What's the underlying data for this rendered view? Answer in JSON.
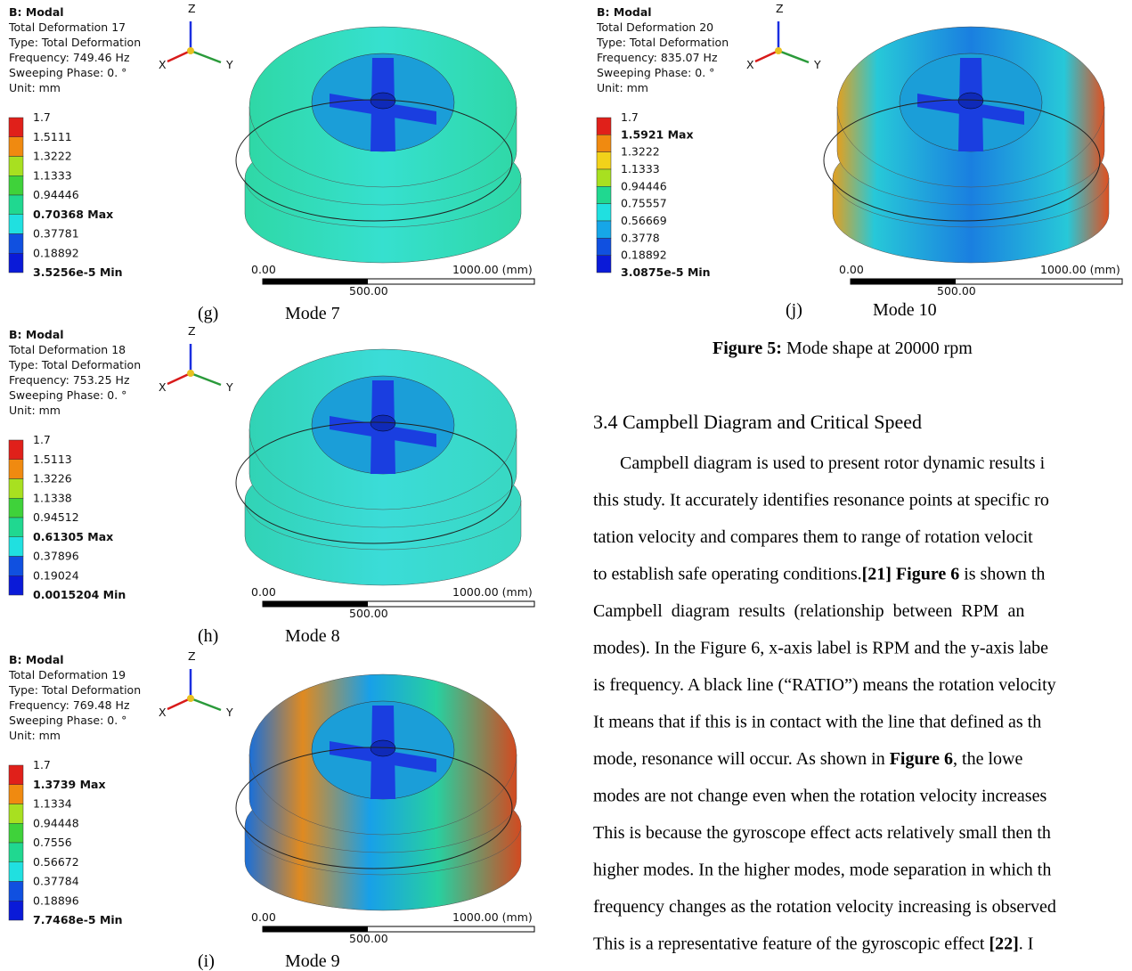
{
  "panels": [
    {
      "header": [
        "B: Modal",
        "Total Deformation 17",
        "Type: Total Deformation",
        "Frequency: 749.46 Hz",
        "Sweeping Phase: 0. °",
        "Unit: mm"
      ],
      "legend": [
        "1.7",
        "1.5111",
        "1.3222",
        "1.1333",
        "0.94446",
        "0.70368 Max",
        "0.37781",
        "0.18892",
        "3.5256e-5 Min"
      ],
      "legend_bold": [
        5,
        8
      ],
      "scale": [
        "0.00",
        "500.00",
        "1000.00 (mm)"
      ],
      "letter": "(g)",
      "mode": "Mode 7"
    },
    {
      "header": [
        "B: Modal",
        "Total Deformation 18",
        "Type: Total Deformation",
        "Frequency: 753.25 Hz",
        "Sweeping Phase: 0. °",
        "Unit: mm"
      ],
      "legend": [
        "1.7",
        "1.5113",
        "1.3226",
        "1.1338",
        "0.94512",
        "0.61305 Max",
        "0.37896",
        "0.19024",
        "0.0015204 Min"
      ],
      "legend_bold": [
        5,
        8
      ],
      "scale": [
        "0.00",
        "500.00",
        "1000.00 (mm)"
      ],
      "letter": "(h)",
      "mode": "Mode 8"
    },
    {
      "header": [
        "B: Modal",
        "Total Deformation 19",
        "Type: Total Deformation",
        "Frequency: 769.48 Hz",
        "Sweeping Phase: 0. °",
        "Unit: mm"
      ],
      "legend": [
        "1.7",
        "1.3739 Max",
        "1.1334",
        "0.94448",
        "0.7556",
        "0.56672",
        "0.37784",
        "0.18896",
        "7.7468e-5 Min"
      ],
      "legend_bold": [
        1,
        8
      ],
      "scale": [
        "0.00",
        "500.00",
        "1000.00 (mm)"
      ],
      "letter": "(i)",
      "mode": "Mode 9"
    },
    {
      "header": [
        "B: Modal",
        "Total Deformation 20",
        "Type: Total Deformation",
        "Frequency: 835.07 Hz",
        "Sweeping Phase: 0. °",
        "Unit: mm"
      ],
      "legend": [
        "1.7",
        "1.5921 Max",
        "1.3222",
        "1.1333",
        "0.94446",
        "0.75557",
        "0.56669",
        "0.3778",
        "0.18892",
        "3.0875e-5 Min"
      ],
      "legend_bold": [
        1,
        9
      ],
      "scale": [
        "0.00",
        "500.00",
        "1000.00 (mm)"
      ],
      "letter": "(j)",
      "mode": "Mode 10"
    }
  ],
  "triad": [
    "Z",
    "X",
    "Y"
  ],
  "figure_caption": {
    "label": "Figure 5:",
    "text": "Mode shape at 20000 rpm"
  },
  "section_title": "3.4 Campbell Diagram and Critical Speed",
  "paragraph": [
    [
      {
        "text": "Campbell diagram is used to present rotor dynamic results i"
      }
    ],
    [
      {
        "text": "this study. It accurately identifies resonance points at specific ro"
      }
    ],
    [
      {
        "text": "tation velocity and compares them to range of rotation velocit"
      }
    ],
    [
      {
        "text": "to establish safe operating conditions."
      },
      {
        "text": "[21] Figure 6",
        "bold": true
      },
      {
        "text": " is shown th"
      }
    ],
    [
      {
        "text": "Campbell  diagram  results  (relationship  between  RPM  an"
      }
    ],
    [
      {
        "text": "modes). In the Figure 6, x-axis label is RPM and the y-axis labe"
      }
    ],
    [
      {
        "text": "is frequency. A black line (“RATIO”) means the rotation velocity"
      }
    ],
    [
      {
        "text": "It means that if this is in contact with the line that defined as th"
      }
    ],
    [
      {
        "text": "mode, resonance will occur. As shown in "
      },
      {
        "text": "Figure 6",
        "bold": true
      },
      {
        "text": ", the lowe"
      }
    ],
    [
      {
        "text": "modes are not change even when the rotation velocity increases"
      }
    ],
    [
      {
        "text": "This is because the gyroscope effect acts relatively small then th"
      }
    ],
    [
      {
        "text": "higher modes. In the higher modes, mode separation in which th"
      }
    ],
    [
      {
        "text": "frequency changes as the rotation velocity increasing is observed"
      }
    ],
    [
      {
        "text": "This is a representative feature of the gyroscopic effect "
      },
      {
        "text": "[22]",
        "bold": true
      },
      {
        "text": ". I"
      }
    ]
  ]
}
